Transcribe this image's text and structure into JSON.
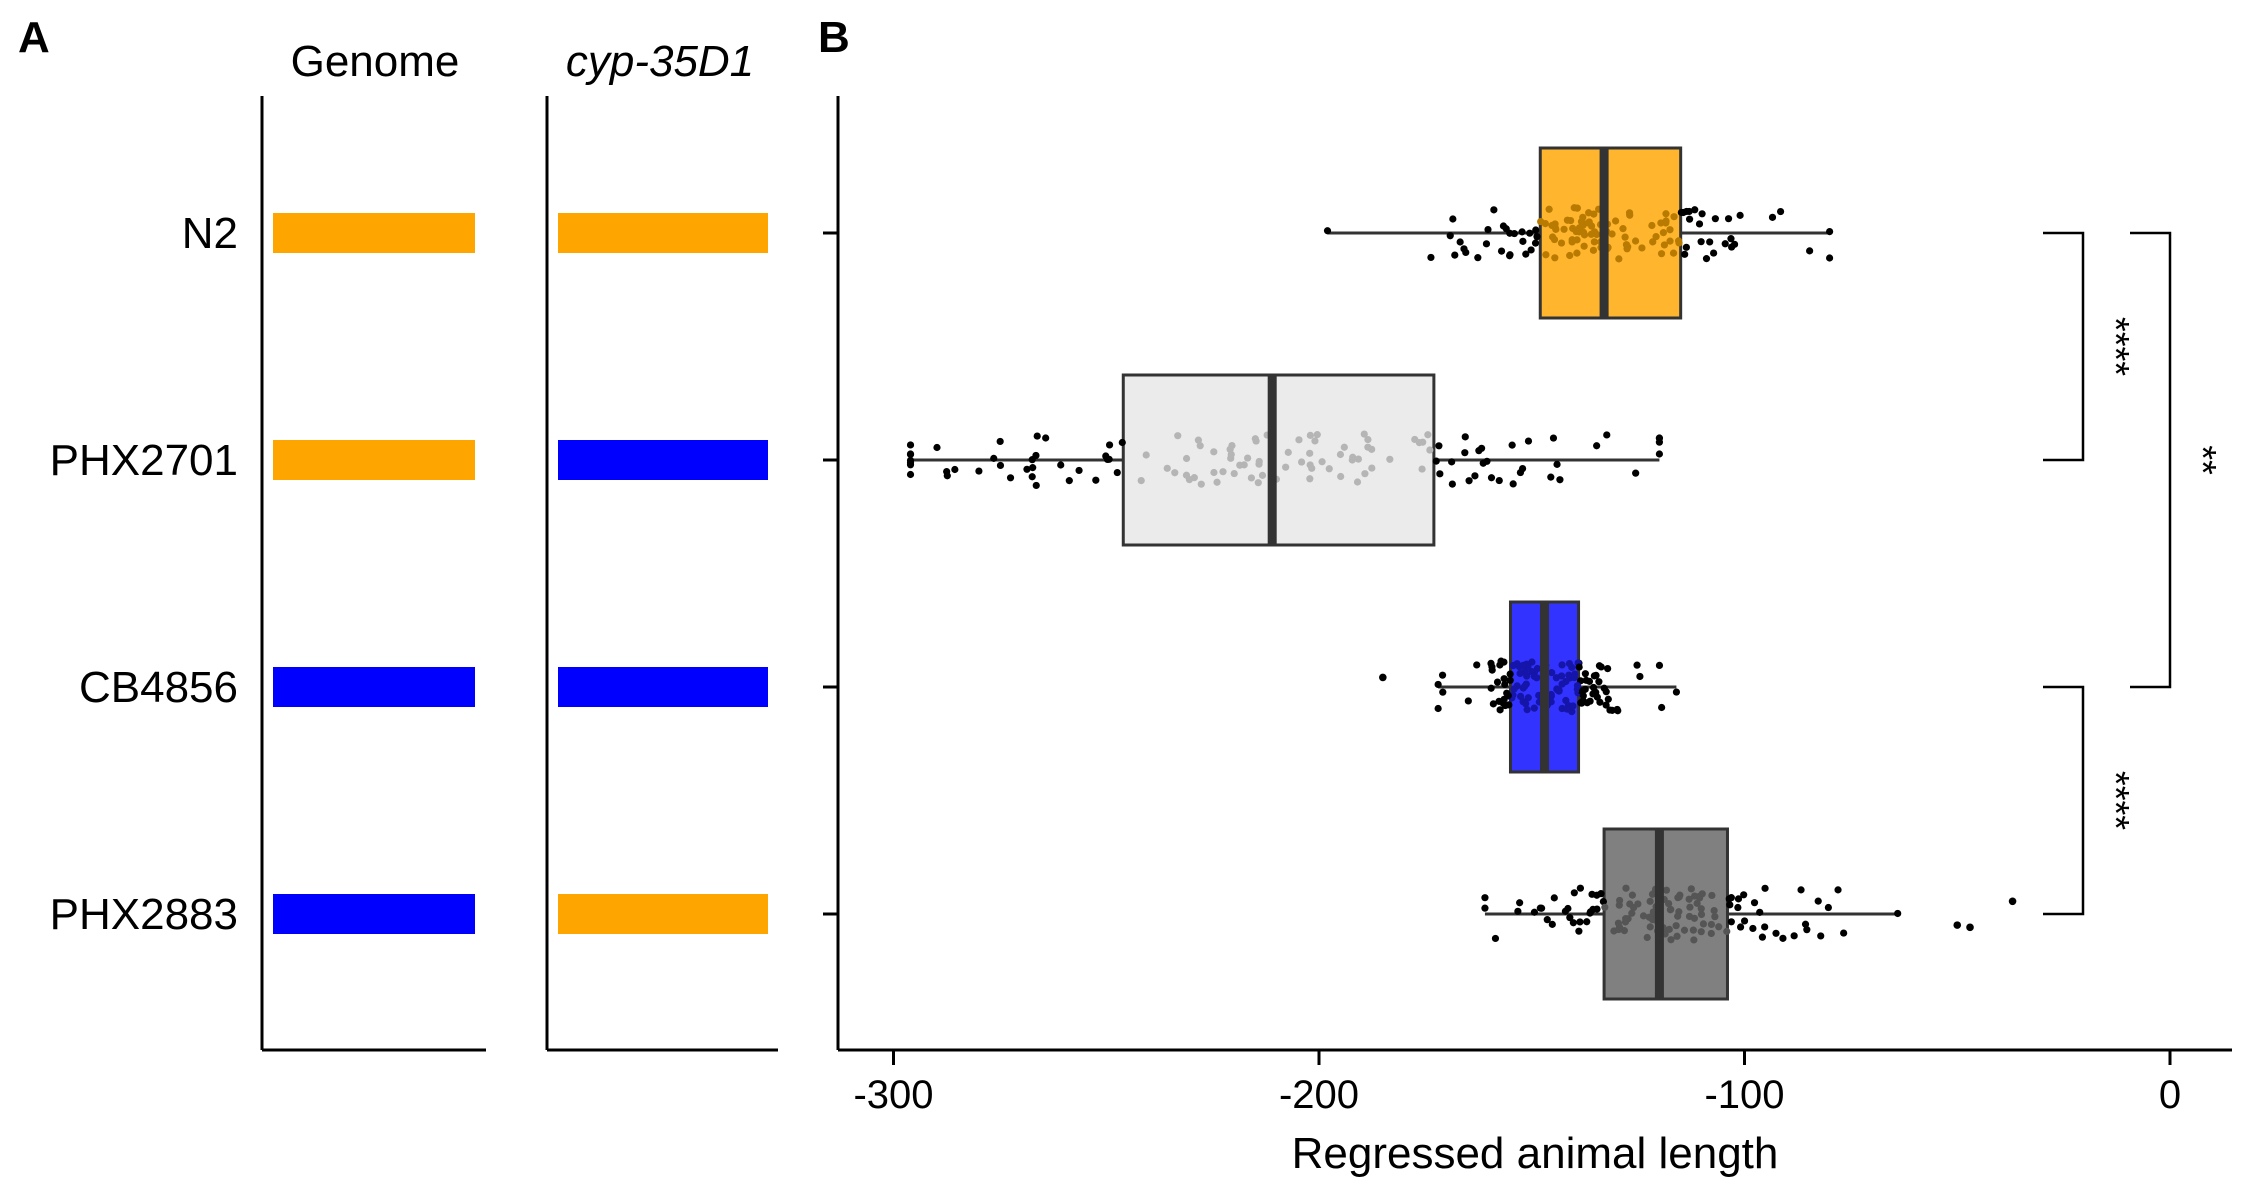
{
  "panels": {
    "a_letter": "A",
    "b_letter": "B"
  },
  "genotype_panel": {
    "col_genome": "Genome",
    "col_gene": "cyp-35D1",
    "strains": [
      {
        "name": "N2",
        "genome": "N2",
        "gene": "N2"
      },
      {
        "name": "PHX2701",
        "genome": "N2",
        "gene": "CB4856"
      },
      {
        "name": "CB4856",
        "genome": "CB4856",
        "gene": "CB4856"
      },
      {
        "name": "PHX2883",
        "genome": "CB4856",
        "gene": "N2"
      }
    ],
    "colors": {
      "N2": "#FFA500",
      "CB4856": "#0000FF"
    }
  },
  "chart_data": {
    "type": "box",
    "orientation": "horizontal",
    "title": "",
    "xlabel": "Regressed animal length",
    "ylabel": "",
    "xlim": [
      -310,
      15
    ],
    "xticks": [
      -300,
      -200,
      -100,
      0
    ],
    "xtick_labels": [
      "-300",
      "-200",
      "-100",
      "0"
    ],
    "categories": [
      "N2",
      "PHX2701",
      "CB4856",
      "PHX2883"
    ],
    "series": [
      {
        "category": "N2",
        "q1": -148,
        "median": -133,
        "q3": -115,
        "whisker_low": -198,
        "whisker_high": -80,
        "outliers": [],
        "fill": "#FFB52E",
        "jitter_color": "#B87A00"
      },
      {
        "category": "PHX2701",
        "q1": -246,
        "median": -211,
        "q3": -173,
        "whisker_low": -296,
        "whisker_high": -120,
        "outliers": [],
        "fill": "#EBEBEB",
        "jitter_color": "#B5B5B5"
      },
      {
        "category": "CB4856",
        "q1": -155,
        "median": -147,
        "q3": -139,
        "whisker_low": -172,
        "whisker_high": -116,
        "outliers": [
          -185
        ],
        "fill": "#3333FF",
        "jitter_color": "#1515AA"
      },
      {
        "category": "PHX2883",
        "q1": -133,
        "median": -120,
        "q3": -104,
        "whisker_low": -161,
        "whisker_high": -64,
        "outliers": [
          -50,
          -47,
          -37
        ],
        "fill": "#808080",
        "jitter_color": "#555555"
      }
    ],
    "significance": [
      {
        "from": "N2",
        "to": "PHX2701",
        "label": "****"
      },
      {
        "from": "N2",
        "to": "CB4856",
        "label": "**"
      },
      {
        "from": "CB4856",
        "to": "PHX2883",
        "label": "****"
      }
    ],
    "grid": false,
    "legend": "none"
  }
}
